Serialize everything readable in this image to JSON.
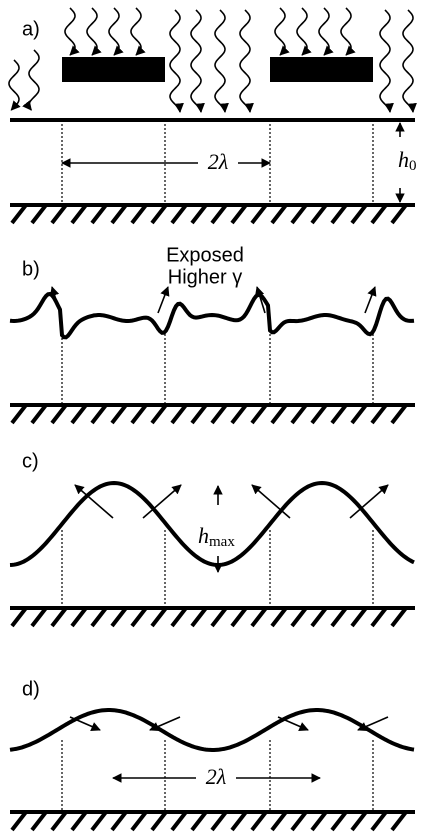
{
  "panels": [
    {
      "label": "a)",
      "spacing": "2λ",
      "thickness": {
        "symbol": "h",
        "subscript": "0"
      }
    },
    {
      "label": "b)",
      "note": [
        "Exposed",
        "Higher γ"
      ]
    },
    {
      "label": "c)",
      "amplitude": {
        "symbol": "h",
        "subscript": "max"
      }
    },
    {
      "label": "d)",
      "spacing": "2λ"
    }
  ]
}
